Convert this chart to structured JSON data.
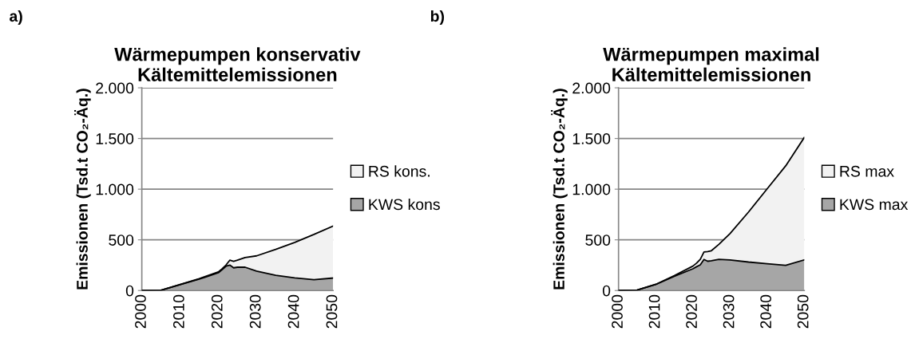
{
  "chart_data": [
    {
      "type": "area",
      "stacked": true,
      "title": "Wärmepumpen konservativ\nKältemittelemissionen",
      "ylabel": "Emissionen (Tsd.t CO₂-Äq.)",
      "annotations": [
        "a)"
      ],
      "x": [
        2000,
        2005,
        2010,
        2015,
        2020,
        2021,
        2022,
        2023,
        2024,
        2025,
        2027,
        2030,
        2035,
        2040,
        2045,
        2050
      ],
      "series": [
        {
          "name": "KWS kons",
          "color": "#a6a6a6",
          "values": [
            0,
            3,
            57,
            112,
            175,
            205,
            240,
            251,
            224,
            230,
            230,
            192,
            150,
            125,
            107,
            123
          ]
        },
        {
          "name": "RS kons.",
          "color": "#f2f2f2",
          "values": [
            0,
            0,
            2,
            5,
            9,
            10,
            11,
            48,
            64,
            69,
            96,
            150,
            256,
            350,
            446,
            513
          ]
        }
      ],
      "xlim": [
        2000,
        2050
      ],
      "xticks": [
        2000,
        2010,
        2020,
        2030,
        2040,
        2050
      ],
      "ylim": [
        0,
        2000
      ],
      "yticks": [
        0,
        500,
        {
          "value": 1000,
          "label": "1.000"
        },
        {
          "value": 1500,
          "label": "1.500"
        },
        {
          "value": 2000,
          "label": "2.000"
        }
      ],
      "grid": "y",
      "legend": "right"
    },
    {
      "type": "area",
      "stacked": true,
      "title": "Wärmepumpen maximal\nKältemittelemissionen",
      "ylabel": "Emissionen (Tsd.t CO₂-Äq.)",
      "annotations": [
        "b)"
      ],
      "x": [
        2000,
        2005,
        2010,
        2015,
        2020,
        2021,
        2022,
        2023,
        2024,
        2025,
        2027,
        2030,
        2035,
        2040,
        2045,
        2050
      ],
      "series": [
        {
          "name": "KWS max",
          "color": "#a6a6a6",
          "values": [
            0,
            5,
            59,
            140,
            214,
            235,
            254,
            307,
            289,
            294,
            307,
            302,
            281,
            265,
            249,
            302
          ]
        },
        {
          "name": "RS max",
          "color": "#f2f2f2",
          "values": [
            0,
            0,
            2,
            7,
            27,
            35,
            54,
            73,
            96,
            99,
            148,
            260,
            494,
            738,
            981,
            1208
          ]
        }
      ],
      "xlim": [
        2000,
        2050
      ],
      "xticks": [
        2000,
        2010,
        2020,
        2030,
        2040,
        2050
      ],
      "ylim": [
        0,
        2000
      ],
      "yticks": [
        0,
        500,
        {
          "value": 1000,
          "label": "1.000"
        },
        {
          "value": 1500,
          "label": "1.500"
        },
        {
          "value": 2000,
          "label": "2.000"
        }
      ],
      "grid": "y",
      "legend": "right"
    }
  ]
}
